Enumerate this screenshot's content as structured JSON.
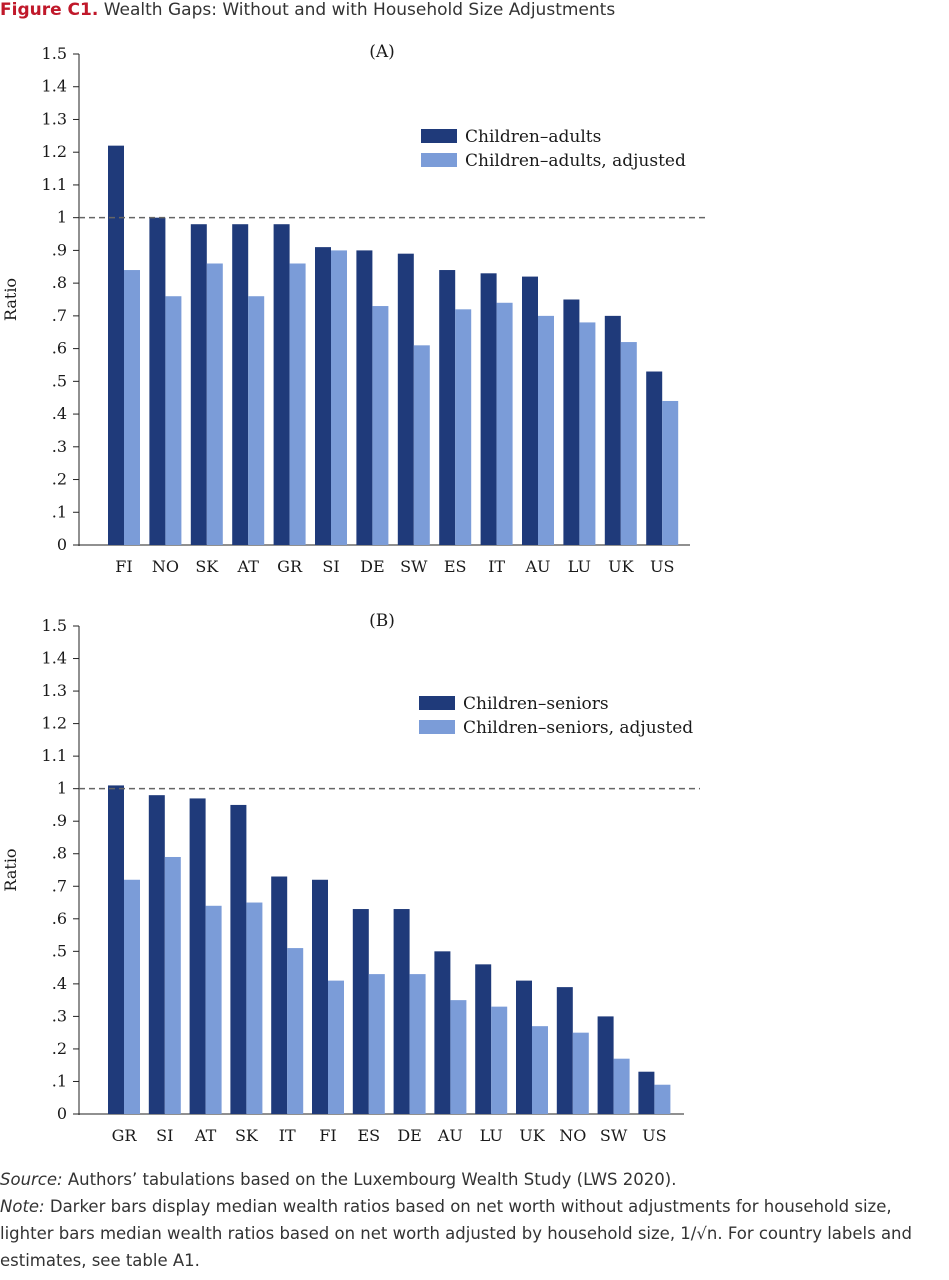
{
  "figure": {
    "label": "Figure C1.",
    "title": "Wealth Gaps: Without and with Household Size Adjustments"
  },
  "colors": {
    "dark": "#1f3a7a",
    "light": "#7b9cd8",
    "reference_line": "#666666"
  },
  "chart_data": [
    {
      "type": "bar",
      "panel_label": "(A)",
      "ylabel": "Ratio",
      "ylim": [
        0,
        1.5
      ],
      "yticks": [
        "0",
        ".1",
        ".2",
        ".3",
        ".4",
        ".5",
        ".6",
        ".7",
        ".8",
        ".9",
        "1",
        "1.1",
        "1.2",
        "1.3",
        "1.4",
        "1.5"
      ],
      "reference_line": 1,
      "legend_position": "top-right",
      "categories": [
        "FI",
        "NO",
        "SK",
        "AT",
        "GR",
        "SI",
        "DE",
        "SW",
        "ES",
        "IT",
        "AU",
        "LU",
        "UK",
        "US"
      ],
      "series": [
        {
          "name": "Children–adults",
          "color": "dark",
          "values": [
            1.22,
            1.0,
            0.98,
            0.98,
            0.98,
            0.91,
            0.9,
            0.89,
            0.84,
            0.83,
            0.82,
            0.75,
            0.7,
            0.53
          ]
        },
        {
          "name": "Children–adults, adjusted",
          "color": "light",
          "values": [
            0.84,
            0.76,
            0.86,
            0.76,
            0.86,
            0.9,
            0.73,
            0.61,
            0.72,
            0.74,
            0.7,
            0.68,
            0.62,
            0.44
          ]
        }
      ]
    },
    {
      "type": "bar",
      "panel_label": "(B)",
      "ylabel": "Ratio",
      "ylim": [
        0,
        1.5
      ],
      "yticks": [
        "0",
        ".1",
        ".2",
        ".3",
        ".4",
        ".5",
        ".6",
        ".7",
        ".8",
        ".9",
        "1",
        "1.1",
        "1.2",
        "1.3",
        "1.4",
        "1.5"
      ],
      "reference_line": 1,
      "legend_position": "top-right",
      "categories": [
        "GR",
        "SI",
        "AT",
        "SK",
        "IT",
        "FI",
        "ES",
        "DE",
        "AU",
        "LU",
        "UK",
        "NO",
        "SW",
        "US"
      ],
      "series": [
        {
          "name": "Children–seniors",
          "color": "dark",
          "values": [
            1.01,
            0.98,
            0.97,
            0.95,
            0.73,
            0.72,
            0.63,
            0.63,
            0.5,
            0.46,
            0.41,
            0.39,
            0.3,
            0.13
          ]
        },
        {
          "name": "Children–seniors, adjusted",
          "color": "light",
          "values": [
            0.72,
            0.79,
            0.64,
            0.65,
            0.51,
            0.41,
            0.43,
            0.43,
            0.35,
            0.33,
            0.27,
            0.25,
            0.17,
            0.09
          ]
        }
      ]
    }
  ],
  "footer": {
    "source_label": "Source:",
    "source_text": " Authors’ tabulations based on the Luxembourg Wealth Study (LWS 2020).",
    "note_label": "Note:",
    "note_text": " Darker bars display median wealth ratios based on net worth without adjustments for household size, lighter bars median wealth ratios based on net worth adjusted by household size, 1/√n. For country labels and estimates, see table A1."
  }
}
